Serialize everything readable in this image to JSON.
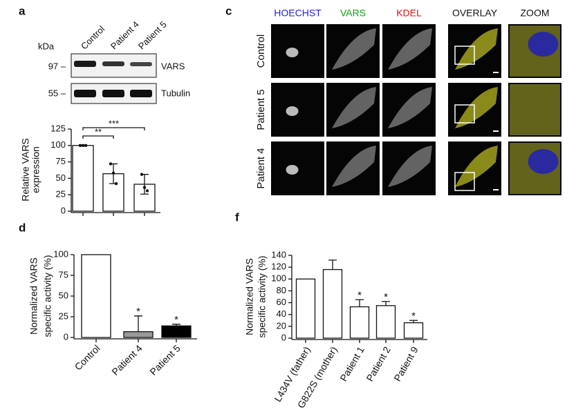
{
  "panels": {
    "a": "a",
    "c": "c",
    "d": "d",
    "f": "f"
  },
  "blot": {
    "unit": "kDa",
    "lanes": [
      "Control",
      "Patient 4",
      "Patient 5"
    ],
    "bands": [
      {
        "marker": "97 –",
        "label": "VARS"
      },
      {
        "marker": "55 –",
        "label": "Tubulin"
      }
    ]
  },
  "microscopy": {
    "columns": [
      {
        "label": "HOECHST",
        "color": "#2020e0"
      },
      {
        "label": "VARS",
        "color": "#10a010"
      },
      {
        "label": "KDEL",
        "color": "#e01010"
      },
      {
        "label": "OVERLAY",
        "color": "#111111"
      },
      {
        "label": "ZOOM",
        "color": "#111111"
      }
    ],
    "rows": [
      "Control",
      "Patient 5",
      "Patient 4"
    ]
  },
  "chart_data": [
    {
      "type": "bar",
      "ylabel": [
        "Relative VARS",
        "expression"
      ],
      "categories": [
        null,
        null,
        null
      ],
      "values": [
        100,
        57,
        41
      ],
      "errors": [
        1,
        15,
        15
      ],
      "points": [
        [
          100,
          100,
          100
        ],
        [
          72,
          58,
          42
        ],
        [
          56,
          36,
          31
        ]
      ],
      "colors": [
        "#ffffff",
        "#ffffff",
        "#ffffff"
      ],
      "ylim": [
        0,
        125
      ],
      "yticks": [
        0,
        25,
        50,
        75,
        100,
        125
      ],
      "annotations": [
        {
          "text": "***"
        },
        {
          "text": "**"
        }
      ]
    },
    {
      "type": "bar",
      "ylabel": [
        "Normalized VARS",
        "specific activity (%)"
      ],
      "categories": [
        "Control",
        "Patient 4",
        "Patient 5"
      ],
      "values": [
        100,
        7,
        14
      ],
      "errors": [
        0,
        19,
        2
      ],
      "colors": [
        "#ffffff",
        "#999999",
        "#000000"
      ],
      "ylim": [
        0,
        100
      ],
      "yticks": [
        0,
        25,
        50,
        75,
        100
      ],
      "annotations": [
        {
          "text": "*",
          "category": "Patient 4"
        },
        {
          "text": "*",
          "category": "Patient 5"
        }
      ]
    },
    {
      "type": "bar",
      "ylabel": [
        "Normalized VARS",
        "specific activity (%)"
      ],
      "categories": [
        "L434V (father)",
        "G822S (mother)",
        "Patient 1",
        "Patient 2",
        "Patient 9"
      ],
      "values": [
        100,
        116,
        53,
        55,
        26
      ],
      "errors": [
        0,
        16,
        12,
        7,
        4
      ],
      "colors": [
        "#ffffff",
        "#ffffff",
        "#ffffff",
        "#ffffff",
        "#ffffff"
      ],
      "ylim": [
        0,
        140
      ],
      "yticks": [
        0,
        20,
        40,
        60,
        80,
        100,
        120,
        140
      ],
      "annotations": [
        {
          "text": "*",
          "category": "Patient 1"
        },
        {
          "text": "*",
          "category": "Patient 2"
        },
        {
          "text": "*",
          "category": "Patient 9"
        }
      ]
    }
  ]
}
